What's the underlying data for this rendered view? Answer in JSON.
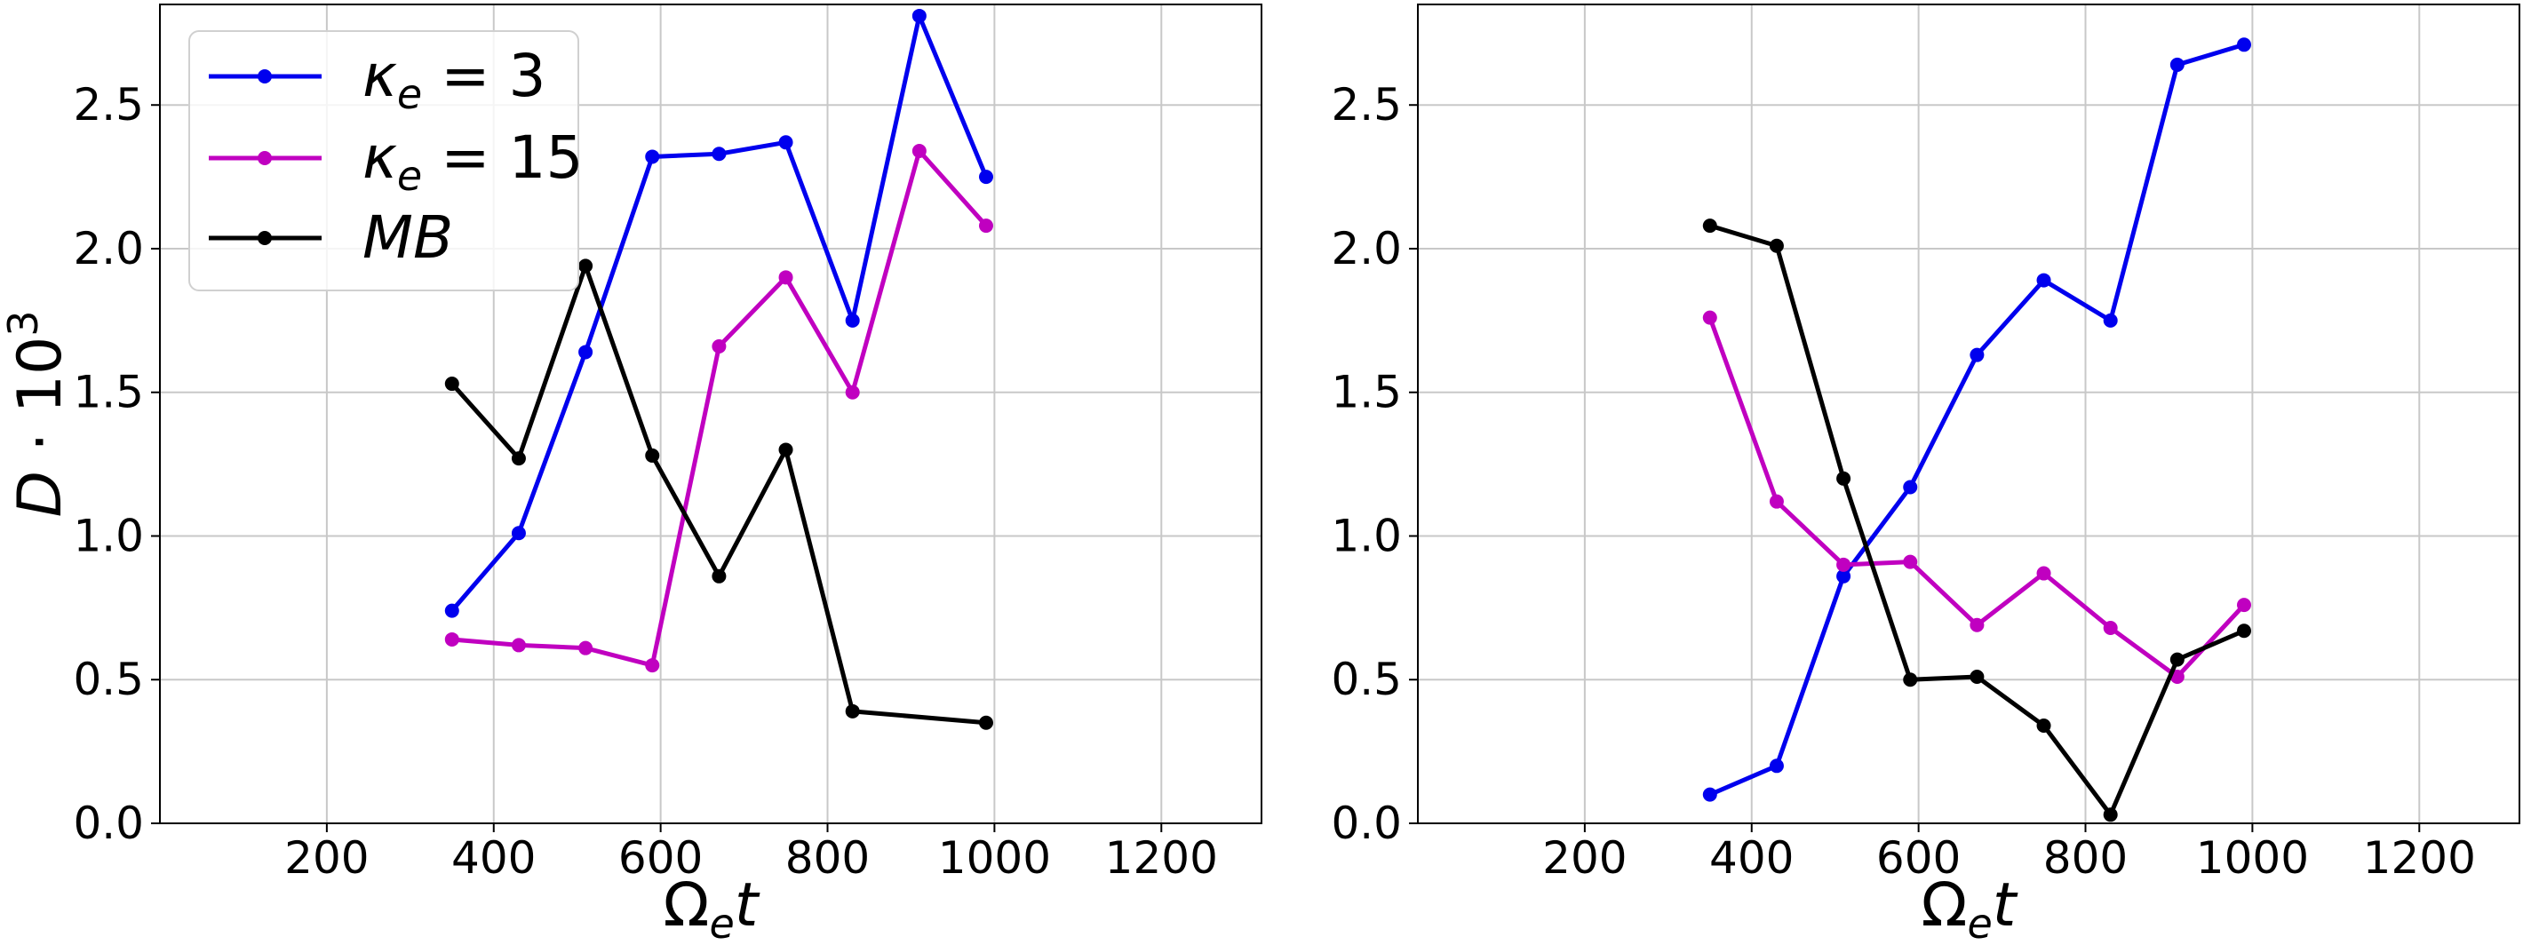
{
  "colors": {
    "kappa3": "#0000ee",
    "kappa15": "#c000c0",
    "mb": "#000000",
    "grid": "#c8c8c8"
  },
  "chart_data": [
    {
      "type": "line",
      "panel": "left",
      "xlabel": "Ωet",
      "ylabel": "D·10³",
      "xlim": [
        0,
        1320
      ],
      "ylim": [
        0,
        2.85
      ],
      "xticks": [
        "200",
        "400",
        "600",
        "800",
        "1000",
        "1200"
      ],
      "yticks": [
        "0.0",
        "0.5",
        "1.0",
        "1.5",
        "2.0",
        "2.5"
      ],
      "grid": true,
      "legend_position": "top-left",
      "x": [
        350,
        430,
        510,
        590,
        670,
        750,
        830,
        910,
        990
      ],
      "series": [
        {
          "name": "κe = 3",
          "values": [
            0.74,
            1.01,
            1.64,
            2.32,
            2.33,
            2.37,
            1.75,
            2.81,
            2.25
          ]
        },
        {
          "name": "κe = 15",
          "values": [
            0.64,
            0.62,
            0.61,
            0.55,
            1.66,
            1.9,
            1.5,
            2.34,
            2.08
          ]
        },
        {
          "name": "MB",
          "values": [
            1.53,
            1.27,
            1.94,
            1.28,
            0.86,
            1.3,
            0.39,
            null,
            0.35
          ]
        }
      ]
    },
    {
      "type": "line",
      "panel": "right",
      "xlabel": "Ωet",
      "ylabel": "",
      "xlim": [
        0,
        1320
      ],
      "ylim": [
        0,
        2.85
      ],
      "xticks": [
        "200",
        "400",
        "600",
        "800",
        "1000",
        "1200"
      ],
      "yticks": [
        "0.0",
        "0.5",
        "1.0",
        "1.5",
        "2.0",
        "2.5"
      ],
      "grid": true,
      "x": [
        350,
        430,
        510,
        590,
        670,
        750,
        830,
        910,
        990
      ],
      "series": [
        {
          "name": "κe = 3",
          "values": [
            0.1,
            0.2,
            0.86,
            1.17,
            1.63,
            1.89,
            1.75,
            2.64,
            2.71
          ]
        },
        {
          "name": "κe = 15",
          "values": [
            1.76,
            1.12,
            0.9,
            0.91,
            0.69,
            0.87,
            0.68,
            0.51,
            0.76
          ]
        },
        {
          "name": "MB",
          "values": [
            2.08,
            2.01,
            1.2,
            0.5,
            0.51,
            0.34,
            0.03,
            0.57,
            0.67
          ]
        }
      ]
    }
  ]
}
